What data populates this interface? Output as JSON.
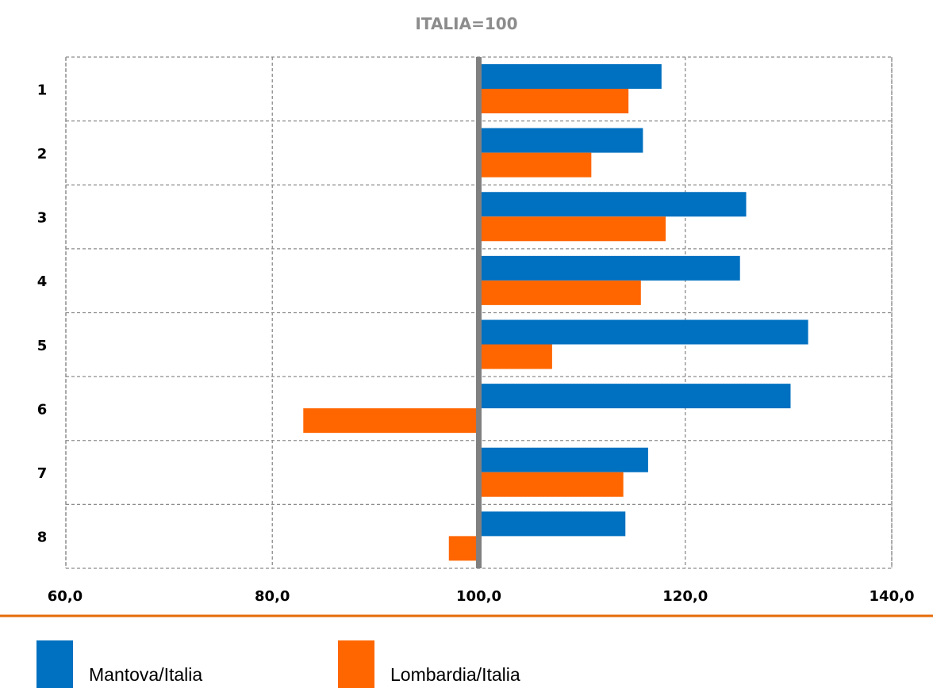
{
  "chart_data": {
    "type": "bar",
    "orientation": "horizontal",
    "title": "ITALIA=100",
    "categories": [
      "1",
      "2",
      "3",
      "4",
      "5",
      "6",
      "7",
      "8"
    ],
    "baseline": 100,
    "xlim": [
      60,
      140
    ],
    "xticks": [
      "60,0",
      "80,0",
      "100,0",
      "120,0",
      "140,0"
    ],
    "xtick_values": [
      60,
      80,
      100,
      120,
      140
    ],
    "grid": true,
    "legend_position": "bottom",
    "series": [
      {
        "name": "Mantova/Italia",
        "color": "#0070C0",
        "values": [
          117.7,
          115.9,
          125.9,
          125.3,
          131.9,
          130.2,
          116.4,
          114.2
        ]
      },
      {
        "name": "Lombardia/Italia",
        "color": "#FF6600",
        "values": [
          114.5,
          110.9,
          118.1,
          115.7,
          107.1,
          83.0,
          114.0,
          97.1
        ]
      }
    ]
  },
  "legend": {
    "items": [
      {
        "label": "Mantova/Italia",
        "color": "#0070C0"
      },
      {
        "label": "Lombardia/Italia",
        "color": "#FF6600"
      }
    ]
  },
  "accent_line_color": "#E46C0A"
}
